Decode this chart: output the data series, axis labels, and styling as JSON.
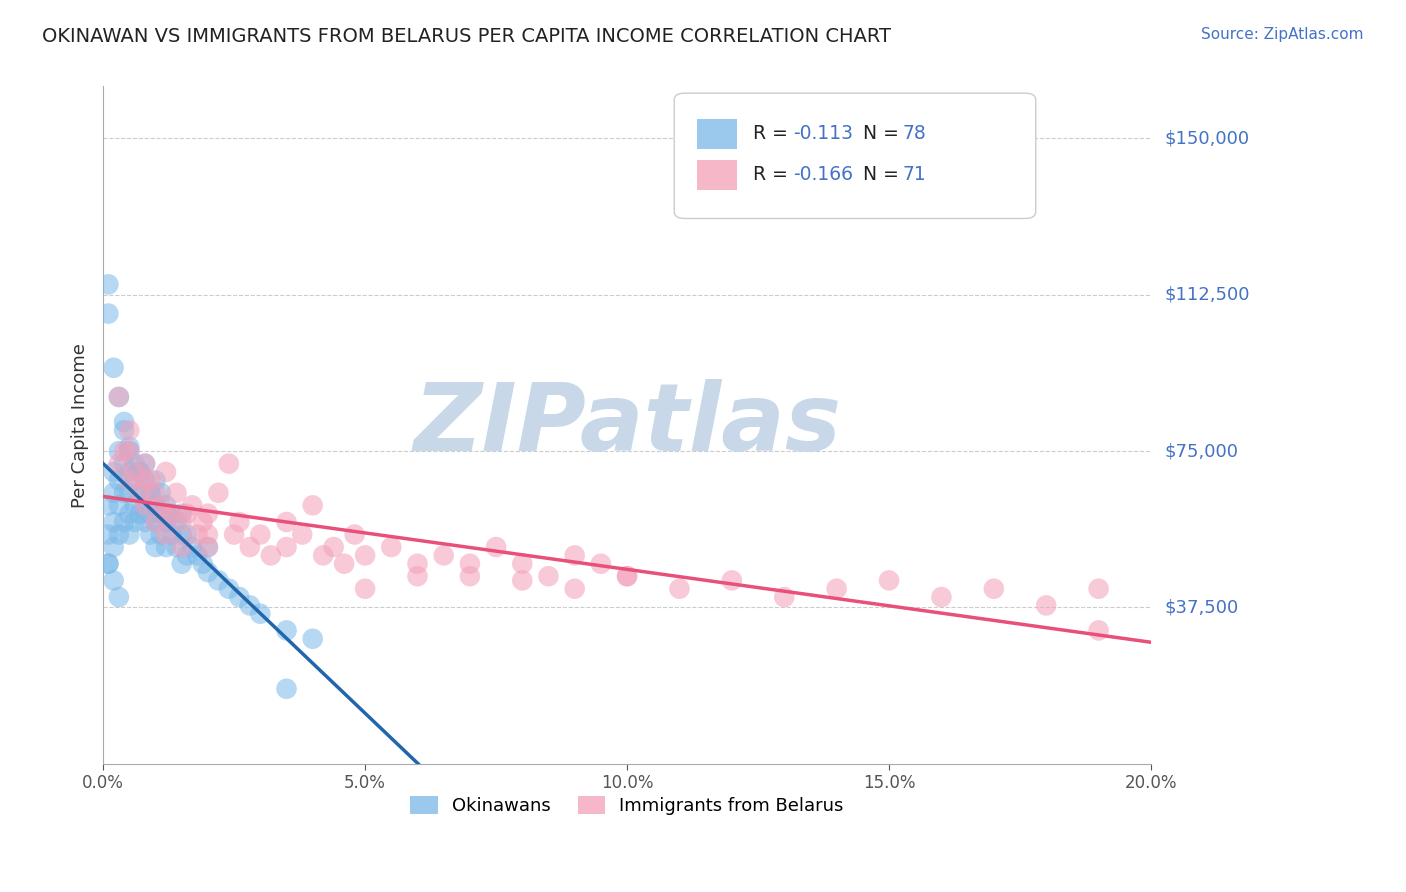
{
  "title": "OKINAWAN VS IMMIGRANTS FROM BELARUS PER CAPITA INCOME CORRELATION CHART",
  "source_text": "Source: ZipAtlas.com",
  "ylabel": "Per Capita Income",
  "xlim": [
    0.0,
    0.2
  ],
  "ylim": [
    0,
    162500
  ],
  "xtick_vals": [
    0.0,
    0.05,
    0.1,
    0.15,
    0.2
  ],
  "xtick_labels": [
    "0.0%",
    "5.0%",
    "10.0%",
    "15.0%",
    "20.0%"
  ],
  "ytick_vals": [
    37500,
    75000,
    112500,
    150000
  ],
  "ytick_labels": [
    "$37,500",
    "$75,000",
    "$112,500",
    "$150,000"
  ],
  "watermark": "ZIPatlas",
  "watermark_color": "#c8d8e8",
  "background_color": "#ffffff",
  "blue_color": "#7ab8e8",
  "pink_color": "#f4a0b8",
  "blue_line_color": "#2166ac",
  "pink_line_color": "#e8507a",
  "dashed_line_color": "#a8c8e8",
  "legend_label_1_left": "R =  ",
  "legend_label_1_r": "-0.113",
  "legend_label_1_mid": "   N = ",
  "legend_label_1_n": "78",
  "legend_label_2_left": "R =  ",
  "legend_label_2_r": "-0.166",
  "legend_label_2_mid": "   N = ",
  "legend_label_2_n": "71",
  "legend_bottom_1": "Okinawans",
  "legend_bottom_2": "Immigrants from Belarus",
  "blue_scatter_x": [
    0.001,
    0.001,
    0.001,
    0.002,
    0.002,
    0.002,
    0.002,
    0.003,
    0.003,
    0.003,
    0.003,
    0.004,
    0.004,
    0.004,
    0.004,
    0.005,
    0.005,
    0.005,
    0.005,
    0.005,
    0.006,
    0.006,
    0.006,
    0.006,
    0.007,
    0.007,
    0.007,
    0.008,
    0.008,
    0.008,
    0.008,
    0.009,
    0.009,
    0.009,
    0.01,
    0.01,
    0.01,
    0.01,
    0.011,
    0.011,
    0.011,
    0.012,
    0.012,
    0.012,
    0.013,
    0.013,
    0.014,
    0.014,
    0.015,
    0.015,
    0.015,
    0.016,
    0.016,
    0.017,
    0.018,
    0.019,
    0.02,
    0.022,
    0.024,
    0.026,
    0.028,
    0.03,
    0.035,
    0.001,
    0.001,
    0.002,
    0.003,
    0.004,
    0.005,
    0.007,
    0.009,
    0.012,
    0.02,
    0.04,
    0.035,
    0.001,
    0.002,
    0.003
  ],
  "blue_scatter_y": [
    62000,
    55000,
    48000,
    65000,
    58000,
    52000,
    70000,
    68000,
    62000,
    55000,
    75000,
    72000,
    65000,
    58000,
    80000,
    70000,
    65000,
    60000,
    55000,
    75000,
    68000,
    72000,
    62000,
    58000,
    70000,
    65000,
    60000,
    68000,
    62000,
    58000,
    72000,
    65000,
    60000,
    55000,
    68000,
    62000,
    58000,
    52000,
    65000,
    60000,
    55000,
    62000,
    58000,
    52000,
    60000,
    55000,
    58000,
    52000,
    55000,
    60000,
    48000,
    55000,
    50000,
    52000,
    50000,
    48000,
    46000,
    44000,
    42000,
    40000,
    38000,
    36000,
    32000,
    115000,
    108000,
    95000,
    88000,
    82000,
    76000,
    70000,
    65000,
    60000,
    52000,
    30000,
    18000,
    48000,
    44000,
    40000
  ],
  "pink_scatter_x": [
    0.003,
    0.004,
    0.005,
    0.005,
    0.006,
    0.007,
    0.008,
    0.008,
    0.009,
    0.01,
    0.01,
    0.011,
    0.012,
    0.012,
    0.013,
    0.014,
    0.015,
    0.015,
    0.016,
    0.017,
    0.018,
    0.019,
    0.02,
    0.02,
    0.022,
    0.024,
    0.025,
    0.026,
    0.028,
    0.03,
    0.032,
    0.035,
    0.035,
    0.038,
    0.04,
    0.042,
    0.044,
    0.046,
    0.048,
    0.05,
    0.055,
    0.06,
    0.065,
    0.07,
    0.075,
    0.08,
    0.085,
    0.09,
    0.095,
    0.1,
    0.05,
    0.06,
    0.07,
    0.08,
    0.09,
    0.1,
    0.11,
    0.12,
    0.13,
    0.14,
    0.15,
    0.16,
    0.17,
    0.18,
    0.19,
    0.003,
    0.005,
    0.008,
    0.012,
    0.02,
    0.19
  ],
  "pink_scatter_y": [
    72000,
    75000,
    68000,
    80000,
    70000,
    65000,
    72000,
    62000,
    68000,
    65000,
    58000,
    62000,
    70000,
    55000,
    60000,
    65000,
    58000,
    52000,
    60000,
    62000,
    55000,
    58000,
    52000,
    60000,
    65000,
    72000,
    55000,
    58000,
    52000,
    55000,
    50000,
    58000,
    52000,
    55000,
    62000,
    50000,
    52000,
    48000,
    55000,
    50000,
    52000,
    48000,
    50000,
    45000,
    52000,
    48000,
    45000,
    50000,
    48000,
    45000,
    42000,
    45000,
    48000,
    44000,
    42000,
    45000,
    42000,
    44000,
    40000,
    42000,
    44000,
    40000,
    42000,
    38000,
    42000,
    88000,
    75000,
    68000,
    60000,
    55000,
    32000
  ]
}
